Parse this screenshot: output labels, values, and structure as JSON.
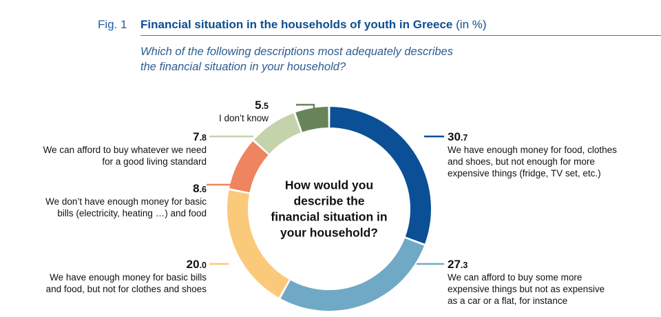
{
  "figure": {
    "label": "Fig. 1",
    "title": "Financial situation in the households of youth in Greece",
    "title_unit": "(in %)",
    "subtitle_lines": [
      "Which of the following descriptions most adequately describes",
      "the financial situation in your household?"
    ]
  },
  "chart_data": {
    "type": "pie",
    "donut": true,
    "center_lines": [
      "How would you",
      "describe the",
      "financial situation in",
      "your household?"
    ],
    "slices": [
      {
        "value_int": "30",
        "value_dec": ".7",
        "value": 30.7,
        "color": "#0b4f97",
        "label_lines": [
          "We have enough money for food, clothes",
          "and shoes, but not enough for more",
          "expensive things (fridge, TV set, etc.)"
        ]
      },
      {
        "value_int": "27",
        "value_dec": ".3",
        "value": 27.3,
        "color": "#70a9c5",
        "label_lines": [
          "We can afford to buy some more",
          "expensive things but not as expensive",
          "as a car or a flat, for instance"
        ]
      },
      {
        "value_int": "20",
        "value_dec": ".0",
        "value": 20.0,
        "color": "#fbc97a",
        "label_lines": [
          "We have enough money for basic bills",
          "and food, but not for clothes and shoes"
        ]
      },
      {
        "value_int": "8",
        "value_dec": ".6",
        "value": 8.6,
        "color": "#ef8460",
        "label_lines": [
          "We don’t have enough money for basic",
          "bills (electricity, heating …) and food"
        ]
      },
      {
        "value_int": "7",
        "value_dec": ".8",
        "value": 7.8,
        "color": "#c4d3ab",
        "label_lines": [
          "We can afford to buy whatever we need",
          "for a good living standard"
        ]
      },
      {
        "value_int": "5",
        "value_dec": ".5",
        "value": 5.5,
        "color": "#67845a",
        "label_lines": [
          "I don’t know"
        ]
      }
    ]
  }
}
